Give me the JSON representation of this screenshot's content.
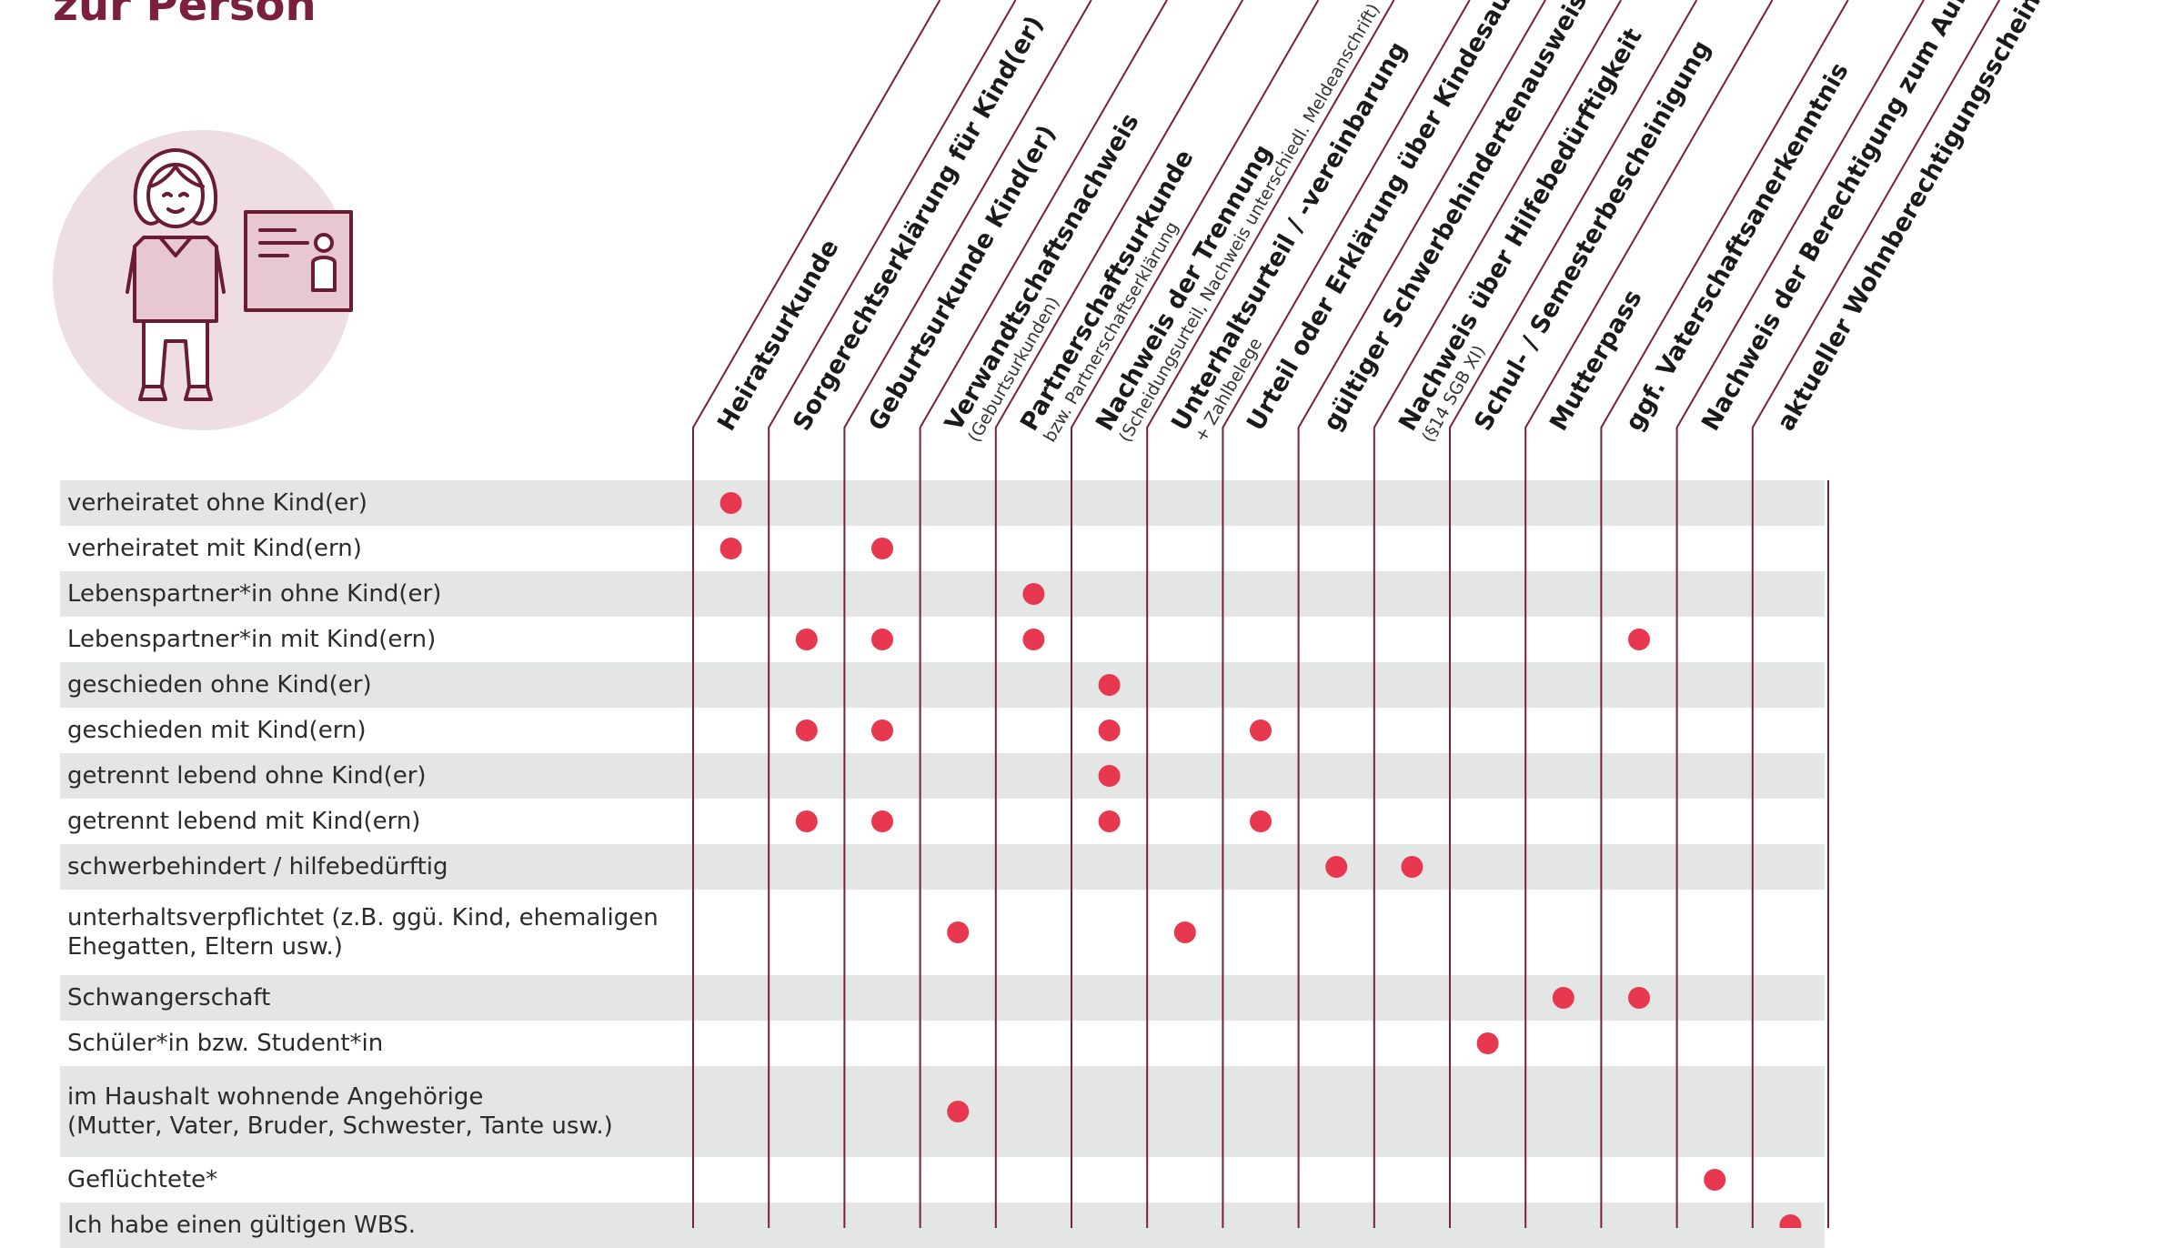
{
  "page": {
    "title": "zur Person"
  },
  "columns": [
    {
      "label": "Heiratsurkunde",
      "sub": ""
    },
    {
      "label": "Sorgerechtserklärung für Kind(er)",
      "sub": ""
    },
    {
      "label": "Geburtsurkunde Kind(er)",
      "sub": ""
    },
    {
      "label": "Verwandtschaftsnachweis",
      "sub": "(Geburtsurkunden)"
    },
    {
      "label": "Partnerschaftsurkunde",
      "sub": "bzw. Partnerschaftserklärung"
    },
    {
      "label": "Nachweis der Trennung",
      "sub": "(Scheidungsurteil, Nachweis unterschiedl. Meldeanschrift)"
    },
    {
      "label": "Unterhaltsurteil / -vereinbarung",
      "sub": "+ Zahlbelege"
    },
    {
      "label": "Urteil oder Erklärung über Kindesaufenthalt",
      "sub": ""
    },
    {
      "label": "gültiger Schwerbehindertenausweis",
      "sub": ""
    },
    {
      "label": "Nachweis über Hilfebedürftigkeit",
      "sub": "(§14 SGB XI)"
    },
    {
      "label": "Schul- / Semesterbescheinigung",
      "sub": ""
    },
    {
      "label": "Mutterpass",
      "sub": ""
    },
    {
      "label": "ggf. Vaterschaftsanerkenntnis",
      "sub": ""
    },
    {
      "label": "Nachweis der Berechtigung zum Aufenthalt",
      "sub": ""
    },
    {
      "label": "aktueller Wohnberechtigungsschein (WBS)",
      "sub": ""
    }
  ],
  "rows": [
    {
      "label": "verheiratet ohne Kind(er)",
      "marks": [
        0
      ]
    },
    {
      "label": "verheiratet mit Kind(ern)",
      "marks": [
        0,
        2
      ]
    },
    {
      "label": "Lebenspartner*in ohne Kind(er)",
      "marks": [
        4
      ]
    },
    {
      "label": "Lebenspartner*in mit Kind(ern)",
      "marks": [
        1,
        2,
        4,
        12
      ]
    },
    {
      "label": "geschieden ohne Kind(er)",
      "marks": [
        5
      ]
    },
    {
      "label": "geschieden mit Kind(ern)",
      "marks": [
        1,
        2,
        5,
        7
      ]
    },
    {
      "label": "getrennt lebend ohne Kind(er)",
      "marks": [
        5
      ]
    },
    {
      "label": "getrennt lebend mit Kind(ern)",
      "marks": [
        1,
        2,
        5,
        7
      ]
    },
    {
      "label": "schwerbehindert / hilfebedürftig",
      "marks": [
        8,
        9
      ]
    },
    {
      "label": "unterhaltsverpflichtet (z.B. ggü. Kind, ehemaligen\nEhegatten, Eltern usw.)",
      "marks": [
        3,
        6
      ]
    },
    {
      "label": "Schwangerschaft",
      "marks": [
        11,
        12
      ]
    },
    {
      "label": "Schüler*in bzw. Student*in",
      "marks": [
        10
      ]
    },
    {
      "label": "im Haushalt wohnende Angehörige\n(Mutter, Vater, Bruder, Schwester, Tante usw.)",
      "marks": [
        3
      ]
    },
    {
      "label": "Geflüchtete*",
      "marks": [
        13
      ]
    },
    {
      "label": "Ich habe einen gültigen WBS.",
      "marks": [
        14
      ]
    }
  ],
  "colors": {
    "title": "#7a1f3c",
    "line": "#7a1f3c",
    "dot": "#e8384f",
    "shade": "#e4e6e5",
    "circle": "#eedde2",
    "icon_stroke": "#6b1c35"
  }
}
